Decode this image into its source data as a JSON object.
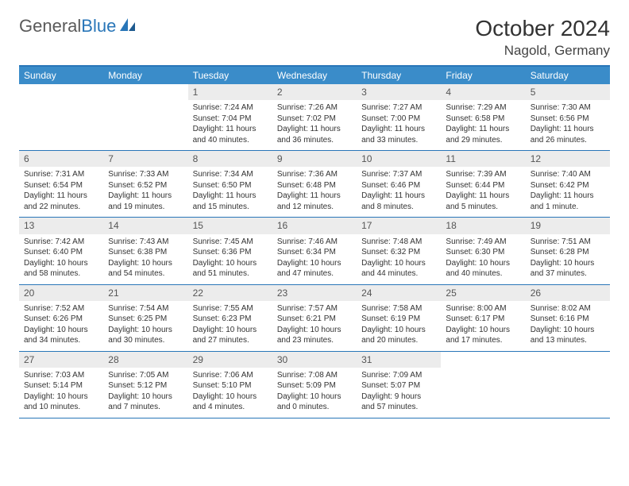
{
  "brand": {
    "part1": "General",
    "part2": "Blue"
  },
  "title": "October 2024",
  "location": "Nagold, Germany",
  "weekdays": [
    "Sunday",
    "Monday",
    "Tuesday",
    "Wednesday",
    "Thursday",
    "Friday",
    "Saturday"
  ],
  "colors": {
    "header_bar": "#3a8cc9",
    "border": "#2976b8",
    "daynum_bg": "#ececec"
  },
  "weeks": [
    [
      {
        "empty": true
      },
      {
        "empty": true
      },
      {
        "n": "1",
        "sr": "Sunrise: 7:24 AM",
        "ss": "Sunset: 7:04 PM",
        "dl": "Daylight: 11 hours and 40 minutes."
      },
      {
        "n": "2",
        "sr": "Sunrise: 7:26 AM",
        "ss": "Sunset: 7:02 PM",
        "dl": "Daylight: 11 hours and 36 minutes."
      },
      {
        "n": "3",
        "sr": "Sunrise: 7:27 AM",
        "ss": "Sunset: 7:00 PM",
        "dl": "Daylight: 11 hours and 33 minutes."
      },
      {
        "n": "4",
        "sr": "Sunrise: 7:29 AM",
        "ss": "Sunset: 6:58 PM",
        "dl": "Daylight: 11 hours and 29 minutes."
      },
      {
        "n": "5",
        "sr": "Sunrise: 7:30 AM",
        "ss": "Sunset: 6:56 PM",
        "dl": "Daylight: 11 hours and 26 minutes."
      }
    ],
    [
      {
        "n": "6",
        "sr": "Sunrise: 7:31 AM",
        "ss": "Sunset: 6:54 PM",
        "dl": "Daylight: 11 hours and 22 minutes."
      },
      {
        "n": "7",
        "sr": "Sunrise: 7:33 AM",
        "ss": "Sunset: 6:52 PM",
        "dl": "Daylight: 11 hours and 19 minutes."
      },
      {
        "n": "8",
        "sr": "Sunrise: 7:34 AM",
        "ss": "Sunset: 6:50 PM",
        "dl": "Daylight: 11 hours and 15 minutes."
      },
      {
        "n": "9",
        "sr": "Sunrise: 7:36 AM",
        "ss": "Sunset: 6:48 PM",
        "dl": "Daylight: 11 hours and 12 minutes."
      },
      {
        "n": "10",
        "sr": "Sunrise: 7:37 AM",
        "ss": "Sunset: 6:46 PM",
        "dl": "Daylight: 11 hours and 8 minutes."
      },
      {
        "n": "11",
        "sr": "Sunrise: 7:39 AM",
        "ss": "Sunset: 6:44 PM",
        "dl": "Daylight: 11 hours and 5 minutes."
      },
      {
        "n": "12",
        "sr": "Sunrise: 7:40 AM",
        "ss": "Sunset: 6:42 PM",
        "dl": "Daylight: 11 hours and 1 minute."
      }
    ],
    [
      {
        "n": "13",
        "sr": "Sunrise: 7:42 AM",
        "ss": "Sunset: 6:40 PM",
        "dl": "Daylight: 10 hours and 58 minutes."
      },
      {
        "n": "14",
        "sr": "Sunrise: 7:43 AM",
        "ss": "Sunset: 6:38 PM",
        "dl": "Daylight: 10 hours and 54 minutes."
      },
      {
        "n": "15",
        "sr": "Sunrise: 7:45 AM",
        "ss": "Sunset: 6:36 PM",
        "dl": "Daylight: 10 hours and 51 minutes."
      },
      {
        "n": "16",
        "sr": "Sunrise: 7:46 AM",
        "ss": "Sunset: 6:34 PM",
        "dl": "Daylight: 10 hours and 47 minutes."
      },
      {
        "n": "17",
        "sr": "Sunrise: 7:48 AM",
        "ss": "Sunset: 6:32 PM",
        "dl": "Daylight: 10 hours and 44 minutes."
      },
      {
        "n": "18",
        "sr": "Sunrise: 7:49 AM",
        "ss": "Sunset: 6:30 PM",
        "dl": "Daylight: 10 hours and 40 minutes."
      },
      {
        "n": "19",
        "sr": "Sunrise: 7:51 AM",
        "ss": "Sunset: 6:28 PM",
        "dl": "Daylight: 10 hours and 37 minutes."
      }
    ],
    [
      {
        "n": "20",
        "sr": "Sunrise: 7:52 AM",
        "ss": "Sunset: 6:26 PM",
        "dl": "Daylight: 10 hours and 34 minutes."
      },
      {
        "n": "21",
        "sr": "Sunrise: 7:54 AM",
        "ss": "Sunset: 6:25 PM",
        "dl": "Daylight: 10 hours and 30 minutes."
      },
      {
        "n": "22",
        "sr": "Sunrise: 7:55 AM",
        "ss": "Sunset: 6:23 PM",
        "dl": "Daylight: 10 hours and 27 minutes."
      },
      {
        "n": "23",
        "sr": "Sunrise: 7:57 AM",
        "ss": "Sunset: 6:21 PM",
        "dl": "Daylight: 10 hours and 23 minutes."
      },
      {
        "n": "24",
        "sr": "Sunrise: 7:58 AM",
        "ss": "Sunset: 6:19 PM",
        "dl": "Daylight: 10 hours and 20 minutes."
      },
      {
        "n": "25",
        "sr": "Sunrise: 8:00 AM",
        "ss": "Sunset: 6:17 PM",
        "dl": "Daylight: 10 hours and 17 minutes."
      },
      {
        "n": "26",
        "sr": "Sunrise: 8:02 AM",
        "ss": "Sunset: 6:16 PM",
        "dl": "Daylight: 10 hours and 13 minutes."
      }
    ],
    [
      {
        "n": "27",
        "sr": "Sunrise: 7:03 AM",
        "ss": "Sunset: 5:14 PM",
        "dl": "Daylight: 10 hours and 10 minutes."
      },
      {
        "n": "28",
        "sr": "Sunrise: 7:05 AM",
        "ss": "Sunset: 5:12 PM",
        "dl": "Daylight: 10 hours and 7 minutes."
      },
      {
        "n": "29",
        "sr": "Sunrise: 7:06 AM",
        "ss": "Sunset: 5:10 PM",
        "dl": "Daylight: 10 hours and 4 minutes."
      },
      {
        "n": "30",
        "sr": "Sunrise: 7:08 AM",
        "ss": "Sunset: 5:09 PM",
        "dl": "Daylight: 10 hours and 0 minutes."
      },
      {
        "n": "31",
        "sr": "Sunrise: 7:09 AM",
        "ss": "Sunset: 5:07 PM",
        "dl": "Daylight: 9 hours and 57 minutes."
      },
      {
        "empty": true
      },
      {
        "empty": true
      }
    ]
  ]
}
